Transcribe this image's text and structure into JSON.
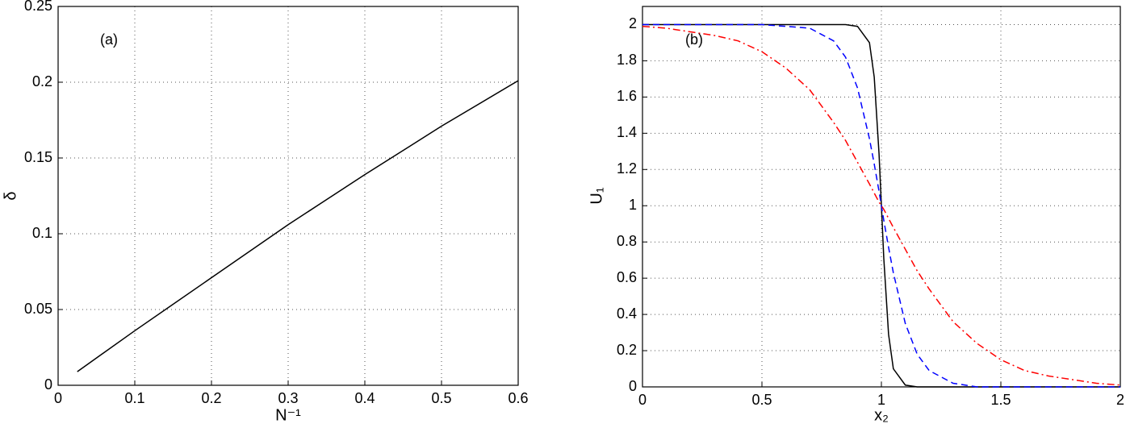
{
  "chart_data": [
    {
      "type": "line",
      "annotation": "(a)",
      "xlabel": "N⁻¹",
      "ylabel": "δ",
      "x": [
        0.025,
        0.1,
        0.2,
        0.3,
        0.4,
        0.5,
        0.6
      ],
      "values": [
        0.009,
        0.036,
        0.071,
        0.106,
        0.139,
        0.171,
        0.201
      ],
      "color": "#000000",
      "xlim": [
        0,
        0.6
      ],
      "xticks": [
        0,
        0.1,
        0.2,
        0.3,
        0.4,
        0.5,
        0.6
      ],
      "ylim": [
        0,
        0.25
      ],
      "yticks": [
        0,
        0.05,
        0.1,
        0.15,
        0.2,
        0.25
      ],
      "grid": true
    },
    {
      "type": "line",
      "annotation": "(b)",
      "xlabel": "x₂",
      "ylabel": "U₁",
      "x": [
        0,
        0.1,
        0.2,
        0.3,
        0.4,
        0.5,
        0.6,
        0.7,
        0.8,
        0.85,
        0.9,
        0.95,
        0.97,
        0.99,
        1,
        1.01,
        1.03,
        1.05,
        1.1,
        1.15,
        1.2,
        1.3,
        1.4,
        1.5,
        1.6,
        1.7,
        1.8,
        1.9,
        2
      ],
      "series": [
        {
          "color": "#000000",
          "linestyle": "solid",
          "values": [
            2,
            2,
            2,
            2,
            2,
            2,
            2,
            2,
            2,
            2,
            1.99,
            1.9,
            1.71,
            1.29,
            1,
            0.71,
            0.29,
            0.1,
            0.01,
            0,
            0,
            0,
            0,
            0,
            0,
            0,
            0,
            0,
            0
          ]
        },
        {
          "color": "#0000ff",
          "linestyle": "dashed",
          "values": [
            2,
            2,
            2,
            2,
            2,
            2,
            1.99,
            1.98,
            1.91,
            1.82,
            1.65,
            1.37,
            1.23,
            1.08,
            1,
            0.92,
            0.77,
            0.63,
            0.35,
            0.18,
            0.09,
            0.02,
            0,
            0,
            0,
            0,
            0,
            0,
            0
          ]
        },
        {
          "color": "#ff0000",
          "linestyle": "dashdot",
          "values": [
            1.99,
            1.98,
            1.96,
            1.94,
            1.91,
            1.85,
            1.76,
            1.64,
            1.46,
            1.36,
            1.24,
            1.12,
            1.07,
            1.02,
            1,
            0.98,
            0.93,
            0.88,
            0.76,
            0.64,
            0.54,
            0.36,
            0.24,
            0.15,
            0.09,
            0.06,
            0.04,
            0.02,
            0.01
          ]
        }
      ],
      "xlim": [
        0,
        2
      ],
      "xticks": [
        0,
        0.5,
        1,
        1.5,
        2
      ],
      "ylim": [
        0,
        2.1
      ],
      "yticks": [
        0,
        0.2,
        0.4,
        0.6,
        0.8,
        1,
        1.2,
        1.4,
        1.6,
        1.8,
        2
      ],
      "grid": true
    }
  ]
}
